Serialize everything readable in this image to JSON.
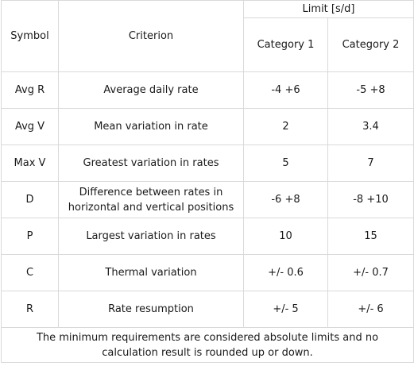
{
  "table": {
    "headers": {
      "symbol": "Symbol",
      "criterion": "Criterion",
      "limit_group": "Limit [s/d]",
      "category1": "Category 1",
      "category2": "Category 2"
    },
    "rows": [
      {
        "symbol": "Avg R",
        "criterion": "Average daily rate",
        "cat1": "-4 +6",
        "cat2": "-5 +8"
      },
      {
        "symbol": "Avg V",
        "criterion": "Mean variation in rate",
        "cat1": "2",
        "cat2": "3.4"
      },
      {
        "symbol": "Max V",
        "criterion": "Greatest variation in rates",
        "cat1": "5",
        "cat2": "7"
      },
      {
        "symbol": "D",
        "criterion": "Difference between rates in horizontal and vertical positions",
        "cat1": "-6 +8",
        "cat2": "-8 +10"
      },
      {
        "symbol": "P",
        "criterion": "Largest variation in rates",
        "cat1": "10",
        "cat2": "15"
      },
      {
        "symbol": "C",
        "criterion": "Thermal variation",
        "cat1": "+/- 0.6",
        "cat2": "+/- 0.7"
      },
      {
        "symbol": "R",
        "criterion": "Rate resumption",
        "cat1": "+/- 5",
        "cat2": "+/- 6"
      }
    ],
    "footnote": "The minimum requirements are considered absolute limits and no calculation result is rounded up or down."
  },
  "colors": {
    "border": "#d9d9d9",
    "text": "#1a1a1a",
    "background": "#ffffff"
  }
}
